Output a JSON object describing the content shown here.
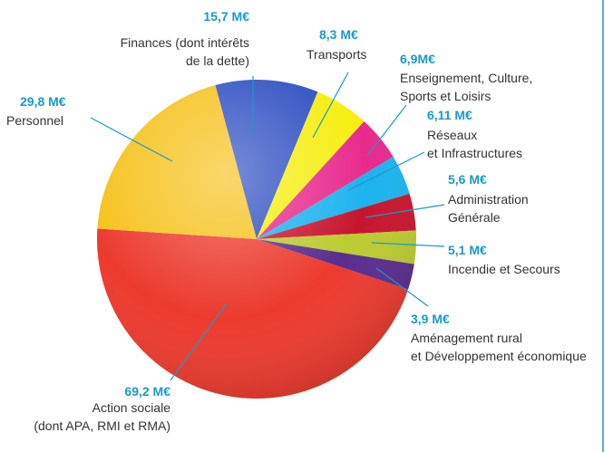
{
  "chart_data": {
    "type": "pie",
    "categories": [
      "Finances (dont intérêts\nde la dette)",
      "Transports",
      "Enseignement, Culture,\nSports et Loisirs",
      "Réseaux\net Infrastructures",
      "Administration\nGénérale",
      "Incendie et Secours",
      "Aménagement rural\net Développement économique",
      "Action sociale\n(dont APA, RMI et RMA)",
      "Personnel"
    ],
    "values": [
      15.7,
      8.3,
      6.9,
      6.11,
      5.6,
      5.1,
      3.9,
      69.2,
      29.8
    ],
    "value_labels": [
      "15,7 M€",
      "8,3 M€",
      "6,9M€",
      "6,11 M€",
      "5,6 M€",
      "5,1 M€",
      "3,9 M€",
      "69,2 M€",
      "29,8 M€"
    ],
    "colors": [
      "#2f4fc2",
      "#f6ee10",
      "#e82a8c",
      "#1cb3ee",
      "#c8142e",
      "#bccb30",
      "#5a2c8e",
      "#ec3a2e",
      "#f6c21c"
    ]
  }
}
